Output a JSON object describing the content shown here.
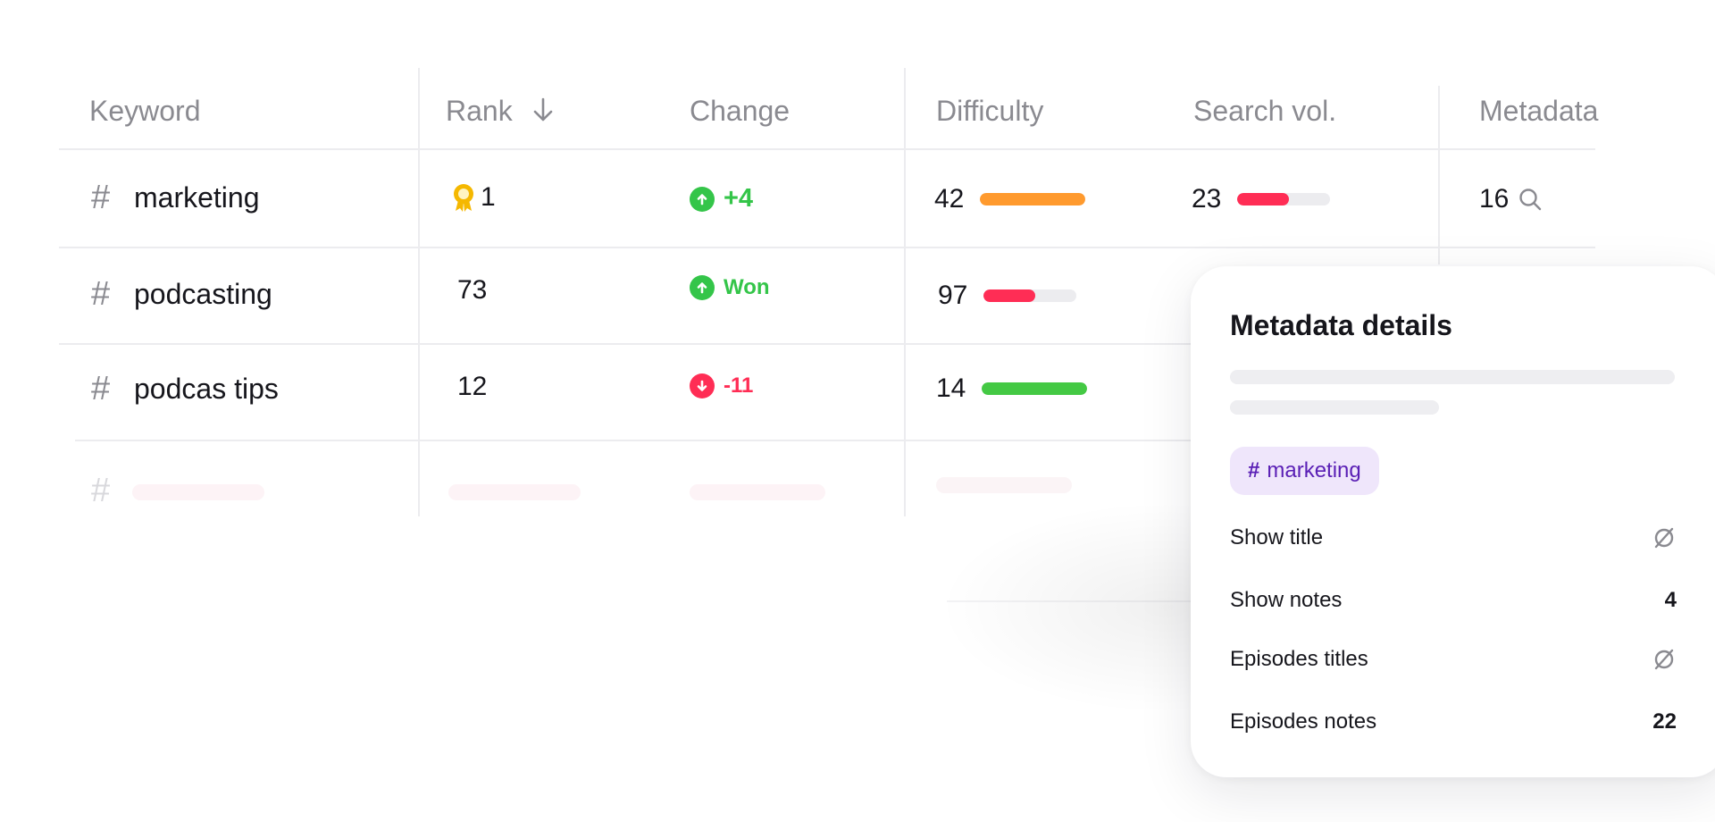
{
  "table": {
    "columns": {
      "keyword": "Keyword",
      "rank": "Rank",
      "change": "Change",
      "difficulty": "Difficulty",
      "search_vol": "Search vol.",
      "metadata": "Metadata"
    },
    "rows": [
      {
        "hash": "#",
        "keyword": "marketing",
        "rank": "1",
        "rank_badge": true,
        "change": "+4",
        "change_direction": "up",
        "difficulty": "42",
        "difficulty_level": 1.0,
        "difficulty_color": "#ff9a2e",
        "search_vol": "23",
        "search_vol_level": 0.55,
        "search_vol_color": "#ff2d55",
        "metadata": "16"
      },
      {
        "hash": "#",
        "keyword": "podcasting",
        "rank": "73",
        "change": "Won",
        "change_direction": "up",
        "difficulty": "97",
        "difficulty_level": 0.55,
        "difficulty_color": "#ff2d55"
      },
      {
        "hash": "#",
        "keyword": "podcas tips",
        "rank": "12",
        "change": "-11",
        "change_direction": "down",
        "difficulty": "14",
        "difficulty_level": 1.0,
        "difficulty_color": "#44c944"
      }
    ],
    "ghost_hash": "#"
  },
  "colors": {
    "up": "#34c549",
    "down": "#ff2d55",
    "gold": "#f5b800",
    "tag_bg": "#efe6fb",
    "tag_text": "#5a1fb5"
  },
  "panel": {
    "title": "Metadata details",
    "tag_hash": "#",
    "tag_label": "marketing",
    "rows": [
      {
        "label": "Show title",
        "value": null,
        "icon": "empty-set-icon"
      },
      {
        "label": "Show notes",
        "value": "4"
      },
      {
        "label": "Episodes titles",
        "value": null,
        "icon": "empty-set-icon"
      },
      {
        "label": "Episodes notes",
        "value": "22"
      }
    ]
  }
}
